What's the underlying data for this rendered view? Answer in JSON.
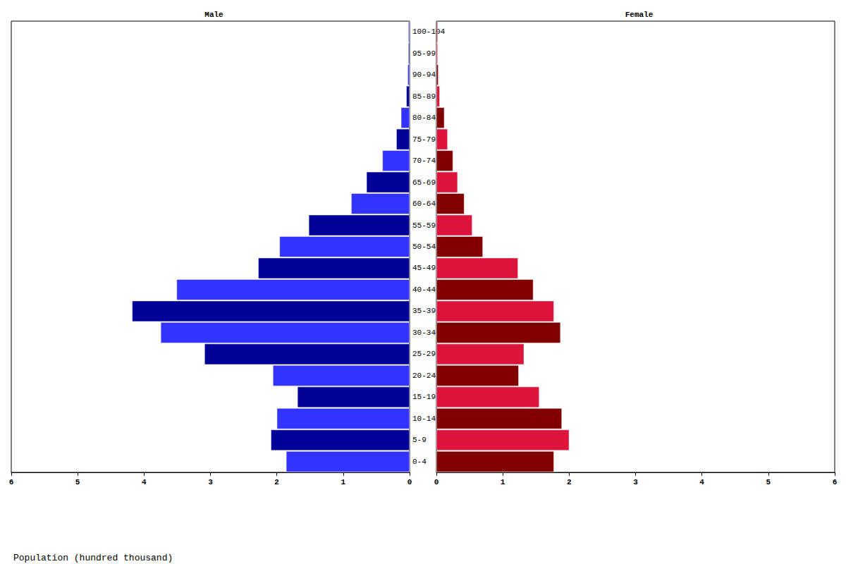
{
  "chart_data": {
    "type": "bar",
    "orientation": "horizontal",
    "xlabel": "Population (hundred thousand)",
    "categories": [
      "0-4",
      "5-9",
      "10-14",
      "15-19",
      "20-24",
      "25-29",
      "30-34",
      "35-39",
      "40-44",
      "45-49",
      "50-54",
      "55-59",
      "60-64",
      "65-69",
      "70-74",
      "75-79",
      "80-84",
      "85-89",
      "90-94",
      "95-99",
      "100-104"
    ],
    "xlim": [
      0,
      6
    ],
    "xticks": [
      0,
      1,
      2,
      3,
      4,
      5,
      6
    ],
    "grid": false,
    "data_labels": false,
    "series": [
      {
        "name": "Male",
        "colors": [
          "#3333ff",
          "#000099",
          "#3333ff",
          "#000099",
          "#3333ff",
          "#000099",
          "#3333ff",
          "#000099",
          "#3333ff",
          "#000099",
          "#3333ff",
          "#000099",
          "#3333ff",
          "#000099",
          "#3333ff",
          "#000099",
          "#3333ff",
          "#000099",
          "#3333ff",
          "#000099",
          "#3333ff"
        ],
        "values": [
          1.86,
          2.09,
          2.0,
          1.69,
          2.06,
          3.09,
          3.75,
          4.18,
          3.51,
          2.28,
          1.96,
          1.52,
          0.88,
          0.65,
          0.41,
          0.2,
          0.13,
          0.05,
          0.03,
          0.02,
          0.02
        ]
      },
      {
        "name": "Female",
        "colors": [
          "#800000",
          "#dc143c",
          "#800000",
          "#dc143c",
          "#800000",
          "#dc143c",
          "#800000",
          "#dc143c",
          "#800000",
          "#dc143c",
          "#800000",
          "#dc143c",
          "#800000",
          "#dc143c",
          "#800000",
          "#dc143c",
          "#800000",
          "#dc143c",
          "#800000",
          "#dc143c",
          "#800000"
        ],
        "values": [
          1.77,
          2.0,
          1.89,
          1.55,
          1.24,
          1.32,
          1.87,
          1.77,
          1.46,
          1.23,
          0.7,
          0.54,
          0.42,
          0.32,
          0.25,
          0.17,
          0.12,
          0.05,
          0.03,
          0.02,
          0.02
        ]
      }
    ]
  }
}
